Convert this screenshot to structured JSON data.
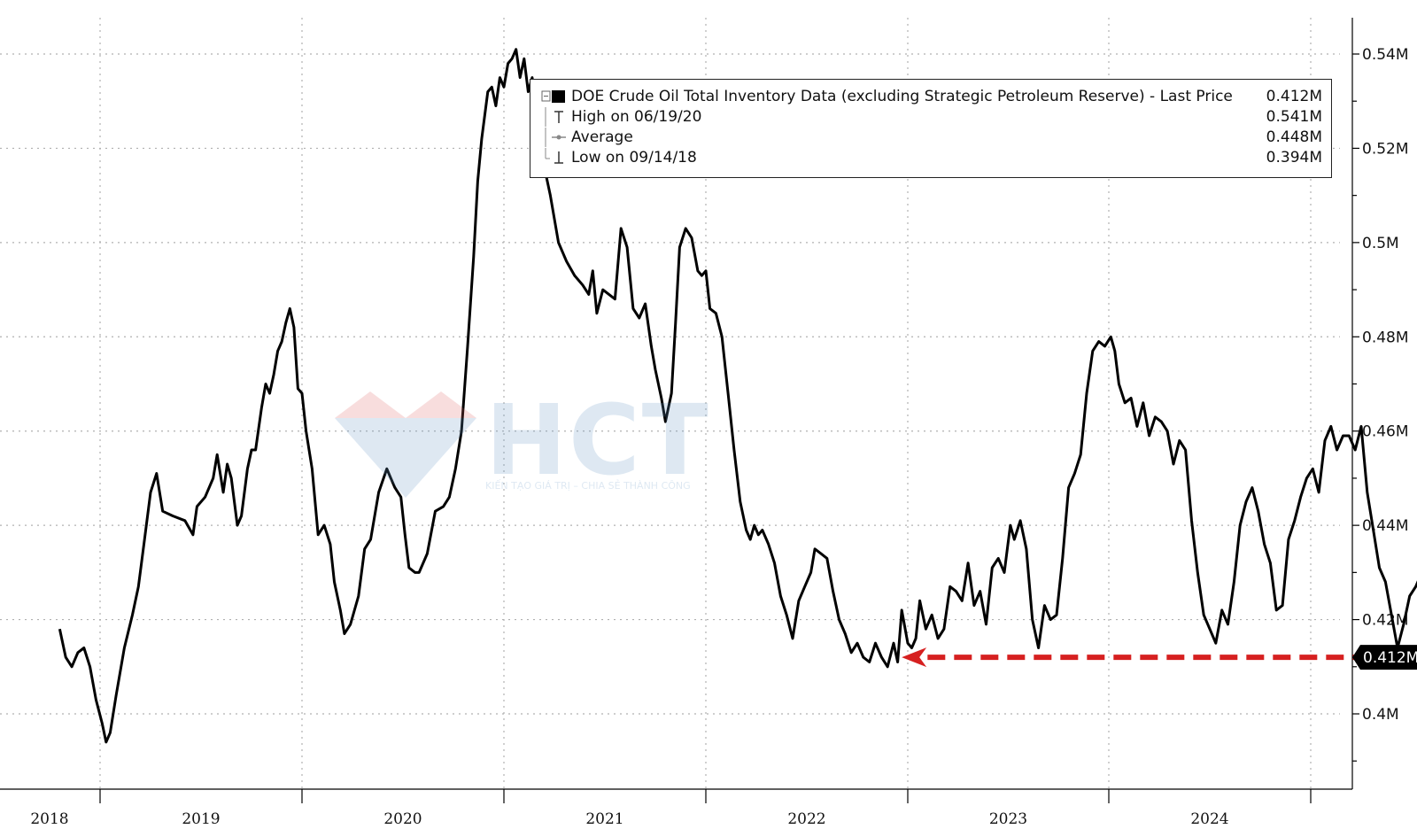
{
  "chart_data": {
    "type": "line",
    "title": "",
    "xlabel": "",
    "ylabel": "",
    "y_unit_suffix": "M",
    "ylim": [
      0.388,
      0.547
    ],
    "xlim": [
      2017.8,
      2024.69
    ],
    "y_ticks": [
      0.4,
      0.42,
      0.44,
      0.46,
      0.48,
      0.5,
      0.52,
      0.54
    ],
    "y_tick_labels": [
      "0.4M",
      "0.42M",
      "0.44M",
      "0.46M",
      "0.48M",
      "0.5M",
      "0.52M",
      "0.54M"
    ],
    "x_tick_labels": [
      "2018",
      "2019",
      "2020",
      "2021",
      "2022",
      "2023",
      "2024"
    ],
    "grid": true,
    "legend_placement": "top-right",
    "series": [
      {
        "name": "DOE Crude Oil Total Inventory Data (excluding Strategic Petroleum Reserve) - Last Price",
        "color": "#000000",
        "points": [
          [
            2017.8,
            0.418
          ],
          [
            2017.83,
            0.412
          ],
          [
            2017.86,
            0.41
          ],
          [
            2017.89,
            0.413
          ],
          [
            2017.92,
            0.414
          ],
          [
            2017.95,
            0.41
          ],
          [
            2017.98,
            0.403
          ],
          [
            2018.01,
            0.398
          ],
          [
            2018.03,
            0.394
          ],
          [
            2018.05,
            0.396
          ],
          [
            2018.08,
            0.404
          ],
          [
            2018.12,
            0.414
          ],
          [
            2018.16,
            0.421
          ],
          [
            2018.19,
            0.427
          ],
          [
            2018.22,
            0.437
          ],
          [
            2018.25,
            0.447
          ],
          [
            2018.28,
            0.451
          ],
          [
            2018.31,
            0.443
          ],
          [
            2018.36,
            0.442
          ],
          [
            2018.42,
            0.441
          ],
          [
            2018.46,
            0.438
          ],
          [
            2018.48,
            0.444
          ],
          [
            2018.52,
            0.446
          ],
          [
            2018.56,
            0.45
          ],
          [
            2018.58,
            0.455
          ],
          [
            2018.61,
            0.447
          ],
          [
            2018.63,
            0.453
          ],
          [
            2018.65,
            0.45
          ],
          [
            2018.68,
            0.44
          ],
          [
            2018.7,
            0.442
          ],
          [
            2018.73,
            0.452
          ],
          [
            2018.75,
            0.456
          ],
          [
            2018.77,
            0.456
          ],
          [
            2018.8,
            0.465
          ],
          [
            2018.82,
            0.47
          ],
          [
            2018.84,
            0.468
          ],
          [
            2018.86,
            0.472
          ],
          [
            2018.88,
            0.477
          ],
          [
            2018.9,
            0.479
          ],
          [
            2018.92,
            0.483
          ],
          [
            2018.94,
            0.486
          ],
          [
            2018.96,
            0.482
          ],
          [
            2018.98,
            0.469
          ],
          [
            2019.0,
            0.468
          ],
          [
            2019.02,
            0.46
          ],
          [
            2019.05,
            0.452
          ],
          [
            2019.08,
            0.438
          ],
          [
            2019.11,
            0.44
          ],
          [
            2019.14,
            0.436
          ],
          [
            2019.16,
            0.428
          ],
          [
            2019.19,
            0.422
          ],
          [
            2019.21,
            0.417
          ],
          [
            2019.24,
            0.419
          ],
          [
            2019.28,
            0.425
          ],
          [
            2019.31,
            0.435
          ],
          [
            2019.34,
            0.437
          ],
          [
            2019.38,
            0.447
          ],
          [
            2019.42,
            0.452
          ],
          [
            2019.44,
            0.45
          ],
          [
            2019.46,
            0.448
          ],
          [
            2019.49,
            0.446
          ],
          [
            2019.51,
            0.438
          ],
          [
            2019.53,
            0.431
          ],
          [
            2019.56,
            0.43
          ],
          [
            2019.58,
            0.43
          ],
          [
            2019.62,
            0.434
          ],
          [
            2019.66,
            0.443
          ],
          [
            2019.7,
            0.444
          ],
          [
            2019.73,
            0.446
          ],
          [
            2019.76,
            0.452
          ],
          [
            2019.79,
            0.46
          ],
          [
            2019.82,
            0.478
          ],
          [
            2019.85,
            0.497
          ],
          [
            2019.87,
            0.513
          ],
          [
            2019.89,
            0.522
          ],
          [
            2019.92,
            0.532
          ],
          [
            2019.94,
            0.533
          ],
          [
            2019.96,
            0.529
          ],
          [
            2019.98,
            0.535
          ],
          [
            2020.0,
            0.533
          ],
          [
            2020.02,
            0.538
          ],
          [
            2020.04,
            0.539
          ],
          [
            2020.06,
            0.541
          ],
          [
            2020.08,
            0.535
          ],
          [
            2020.1,
            0.539
          ],
          [
            2020.12,
            0.532
          ],
          [
            2020.14,
            0.535
          ],
          [
            2020.17,
            0.527
          ],
          [
            2020.2,
            0.516
          ],
          [
            2020.23,
            0.51
          ],
          [
            2020.27,
            0.5
          ],
          [
            2020.31,
            0.496
          ],
          [
            2020.35,
            0.493
          ],
          [
            2020.39,
            0.491
          ],
          [
            2020.42,
            0.489
          ],
          [
            2020.44,
            0.494
          ],
          [
            2020.46,
            0.485
          ],
          [
            2020.49,
            0.49
          ],
          [
            2020.52,
            0.489
          ],
          [
            2020.55,
            0.488
          ],
          [
            2020.58,
            0.503
          ],
          [
            2020.61,
            0.499
          ],
          [
            2020.64,
            0.486
          ],
          [
            2020.67,
            0.484
          ],
          [
            2020.7,
            0.487
          ],
          [
            2020.73,
            0.478
          ],
          [
            2020.75,
            0.473
          ],
          [
            2020.78,
            0.467
          ],
          [
            2020.8,
            0.462
          ],
          [
            2020.83,
            0.468
          ],
          [
            2020.85,
            0.483
          ],
          [
            2020.87,
            0.499
          ],
          [
            2020.9,
            0.503
          ],
          [
            2020.93,
            0.501
          ],
          [
            2020.96,
            0.494
          ],
          [
            2020.98,
            0.493
          ],
          [
            2021.0,
            0.494
          ],
          [
            2021.02,
            0.486
          ],
          [
            2021.05,
            0.485
          ],
          [
            2021.08,
            0.48
          ],
          [
            2021.11,
            0.468
          ],
          [
            2021.14,
            0.456
          ],
          [
            2021.17,
            0.445
          ],
          [
            2021.2,
            0.439
          ],
          [
            2021.22,
            0.437
          ],
          [
            2021.24,
            0.44
          ],
          [
            2021.26,
            0.438
          ],
          [
            2021.28,
            0.439
          ],
          [
            2021.31,
            0.436
          ],
          [
            2021.34,
            0.432
          ],
          [
            2021.37,
            0.425
          ],
          [
            2021.4,
            0.421
          ],
          [
            2021.43,
            0.416
          ],
          [
            2021.46,
            0.424
          ],
          [
            2021.49,
            0.427
          ],
          [
            2021.52,
            0.43
          ],
          [
            2021.54,
            0.435
          ],
          [
            2021.57,
            0.434
          ],
          [
            2021.6,
            0.433
          ],
          [
            2021.63,
            0.426
          ],
          [
            2021.66,
            0.42
          ],
          [
            2021.69,
            0.417
          ],
          [
            2021.72,
            0.413
          ],
          [
            2021.75,
            0.415
          ],
          [
            2021.78,
            0.412
          ],
          [
            2021.81,
            0.411
          ],
          [
            2021.84,
            0.415
          ],
          [
            2021.87,
            0.412
          ],
          [
            2021.9,
            0.41
          ],
          [
            2021.93,
            0.415
          ],
          [
            2021.95,
            0.411
          ],
          [
            2021.97,
            0.422
          ],
          [
            2022.0,
            0.415
          ],
          [
            2022.02,
            0.414
          ],
          [
            2022.04,
            0.416
          ],
          [
            2022.06,
            0.424
          ],
          [
            2022.09,
            0.418
          ],
          [
            2022.12,
            0.421
          ],
          [
            2022.15,
            0.416
          ],
          [
            2022.18,
            0.418
          ],
          [
            2022.21,
            0.427
          ],
          [
            2022.24,
            0.426
          ],
          [
            2022.27,
            0.424
          ],
          [
            2022.3,
            0.432
          ],
          [
            2022.33,
            0.423
          ],
          [
            2022.36,
            0.426
          ],
          [
            2022.39,
            0.419
          ],
          [
            2022.42,
            0.431
          ],
          [
            2022.45,
            0.433
          ],
          [
            2022.48,
            0.43
          ],
          [
            2022.51,
            0.44
          ],
          [
            2022.53,
            0.437
          ],
          [
            2022.56,
            0.441
          ],
          [
            2022.59,
            0.435
          ],
          [
            2022.62,
            0.42
          ],
          [
            2022.65,
            0.414
          ],
          [
            2022.68,
            0.423
          ],
          [
            2022.71,
            0.42
          ],
          [
            2022.74,
            0.421
          ],
          [
            2022.77,
            0.433
          ],
          [
            2022.8,
            0.448
          ],
          [
            2022.83,
            0.451
          ],
          [
            2022.86,
            0.455
          ],
          [
            2022.89,
            0.468
          ],
          [
            2022.92,
            0.477
          ],
          [
            2022.95,
            0.479
          ],
          [
            2022.98,
            0.478
          ],
          [
            2023.01,
            0.48
          ],
          [
            2023.03,
            0.477
          ],
          [
            2023.05,
            0.47
          ],
          [
            2023.08,
            0.466
          ],
          [
            2023.11,
            0.467
          ],
          [
            2023.14,
            0.461
          ],
          [
            2023.17,
            0.466
          ],
          [
            2023.2,
            0.459
          ],
          [
            2023.23,
            0.463
          ],
          [
            2023.26,
            0.462
          ],
          [
            2023.29,
            0.46
          ],
          [
            2023.32,
            0.453
          ],
          [
            2023.35,
            0.458
          ],
          [
            2023.38,
            0.456
          ],
          [
            2023.41,
            0.441
          ],
          [
            2023.44,
            0.43
          ],
          [
            2023.47,
            0.421
          ],
          [
            2023.5,
            0.418
          ],
          [
            2023.53,
            0.415
          ],
          [
            2023.56,
            0.422
          ],
          [
            2023.59,
            0.419
          ],
          [
            2023.62,
            0.428
          ],
          [
            2023.65,
            0.44
          ],
          [
            2023.68,
            0.445
          ],
          [
            2023.71,
            0.448
          ],
          [
            2023.74,
            0.443
          ],
          [
            2023.77,
            0.436
          ],
          [
            2023.8,
            0.432
          ],
          [
            2023.83,
            0.422
          ],
          [
            2023.86,
            0.423
          ],
          [
            2023.89,
            0.437
          ],
          [
            2023.92,
            0.441
          ],
          [
            2023.95,
            0.446
          ],
          [
            2023.98,
            0.45
          ],
          [
            2024.01,
            0.452
          ],
          [
            2024.04,
            0.447
          ],
          [
            2024.07,
            0.458
          ],
          [
            2024.1,
            0.461
          ],
          [
            2024.13,
            0.456
          ],
          [
            2024.16,
            0.459
          ],
          [
            2024.19,
            0.459
          ],
          [
            2024.22,
            0.456
          ],
          [
            2024.25,
            0.461
          ],
          [
            2024.28,
            0.447
          ],
          [
            2024.31,
            0.439
          ],
          [
            2024.34,
            0.431
          ],
          [
            2024.37,
            0.428
          ],
          [
            2024.4,
            0.421
          ],
          [
            2024.43,
            0.414
          ],
          [
            2024.46,
            0.419
          ],
          [
            2024.49,
            0.425
          ],
          [
            2024.52,
            0.427
          ],
          [
            2024.55,
            0.43
          ],
          [
            2024.58,
            0.428
          ],
          [
            2024.61,
            0.422
          ],
          [
            2024.64,
            0.418
          ],
          [
            2024.67,
            0.413
          ],
          [
            2024.69,
            0.412
          ]
        ]
      }
    ],
    "last_value": 0.412,
    "last_value_label": "0.412M",
    "legend_entries": [
      {
        "label": "DOE Crude Oil Total Inventory Data (excluding Strategic Petroleum Reserve) - Last Price",
        "value": "0.412M"
      },
      {
        "label": "High on 06/19/20",
        "value": "0.541M"
      },
      {
        "label": "Average",
        "value": "0.448M"
      },
      {
        "label": "Low on 09/14/18",
        "value": "0.394M"
      }
    ],
    "annotations": [
      {
        "type": "dashed-arrow",
        "color": "#d62020",
        "from": [
          2024.69,
          0.412
        ],
        "to": [
          2021.97,
          0.412
        ]
      }
    ]
  },
  "watermark": {
    "text": "HCT",
    "subtext": "KIẾN TẠO GIÁ TRỊ – CHIA SẺ THÀNH CÔNG",
    "colors": {
      "red": "#e06a6a",
      "blue": "#6b9cc9"
    }
  },
  "colors": {
    "line": "#000000",
    "grid": "#b0b0b0",
    "annotation": "#d62020",
    "last_badge_bg": "#000000",
    "last_badge_fg": "#ffffff"
  }
}
